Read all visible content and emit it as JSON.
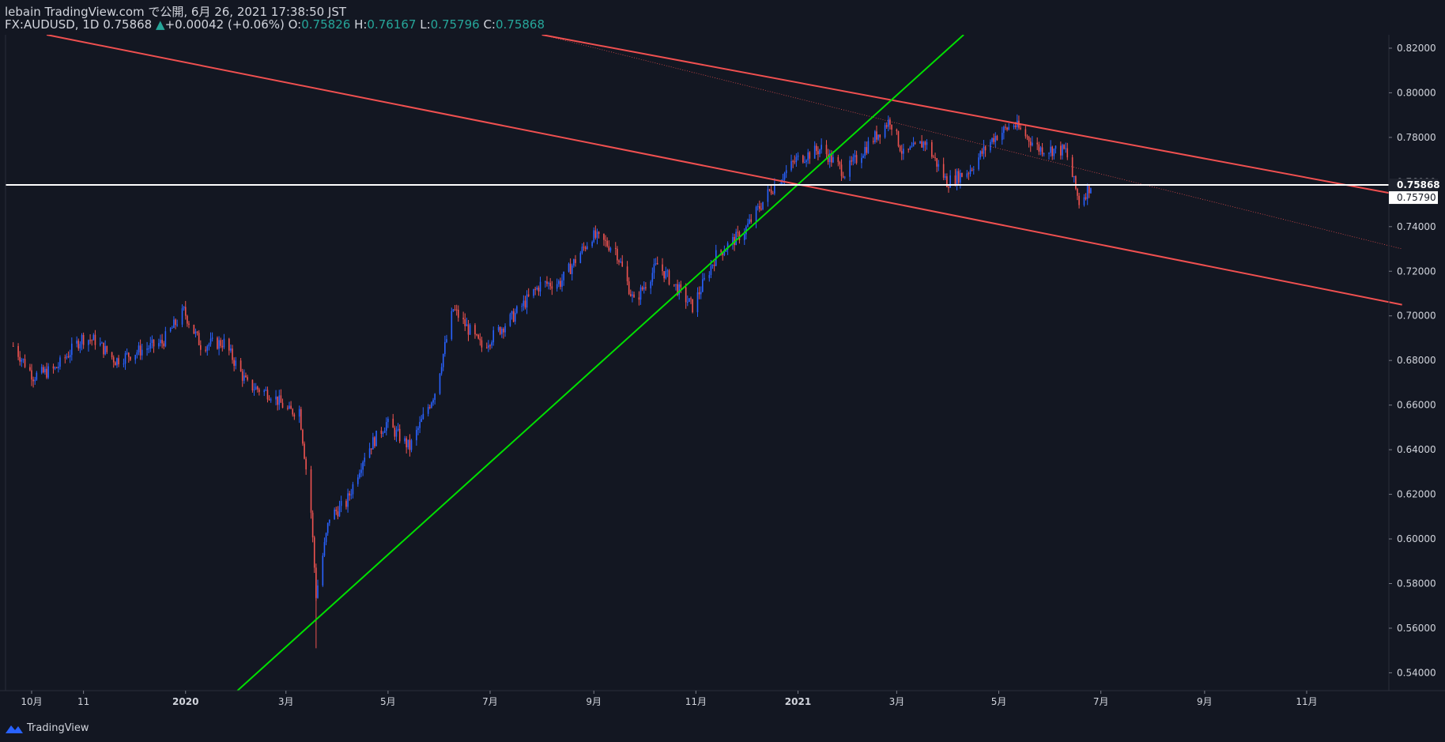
{
  "header": {
    "line1": "lebain TradingView.com で公開, 6月 26, 2021 17:38:50 JST",
    "symbol": "FX:AUDUSD, 1D 0.75868",
    "change_arrow": "▲",
    "change": "+0.00042 (+0.06%)",
    "o_label": "O:",
    "o_value": "0.75826",
    "h_label": "H:",
    "h_value": "0.76167",
    "l_label": "L:",
    "l_value": "0.75796",
    "c_label": "C:",
    "c_value": "0.75868"
  },
  "footer": {
    "brand": "TradingView"
  },
  "colors": {
    "background": "#131722",
    "up": "#2962ff",
    "down": "#ef5350",
    "upline": "#00e000",
    "channel": "#f05050",
    "hline": "#ffffff",
    "text": "#d1d4dc",
    "accent": "#26a69a"
  },
  "chart_data": {
    "type": "candlestick",
    "symbol": "FX:AUDUSD",
    "timeframe": "1D",
    "x_tick_labels": [
      "10月",
      "11",
      "2020",
      "3月",
      "5月",
      "7月",
      "9月",
      "11月",
      "2021",
      "3月",
      "5月",
      "7月",
      "9月",
      "11月"
    ],
    "y_ticks": [
      "0.82000",
      "0.80000",
      "0.78000",
      "0.76000",
      "0.74000",
      "0.72000",
      "0.70000",
      "0.68000",
      "0.66000",
      "0.64000",
      "0.62000",
      "0.60000",
      "0.58000",
      "0.56000",
      "0.54000"
    ],
    "ylim": [
      0.532,
      0.826
    ],
    "last_price_label": "0.75868",
    "prev_price_label": "0.75790",
    "horizontal_line": 0.75868,
    "price_path": [
      [
        "2019-09-20",
        0.6865
      ],
      [
        "2019-10-02",
        0.673
      ],
      [
        "2019-10-15",
        0.676
      ],
      [
        "2019-10-31",
        0.69
      ],
      [
        "2019-11-08",
        0.689
      ],
      [
        "2019-11-20",
        0.68
      ],
      [
        "2019-12-03",
        0.684
      ],
      [
        "2019-12-18",
        0.688
      ],
      [
        "2019-12-31",
        0.702
      ],
      [
        "2020-01-10",
        0.687
      ],
      [
        "2020-01-24",
        0.688
      ],
      [
        "2020-02-07",
        0.669
      ],
      [
        "2020-02-21",
        0.665
      ],
      [
        "2020-03-03",
        0.657
      ],
      [
        "2020-03-09",
        0.658
      ],
      [
        "2020-03-16",
        0.612
      ],
      [
        "2020-03-19",
        0.575
      ],
      [
        "2020-03-27",
        0.61
      ],
      [
        "2020-04-06",
        0.616
      ],
      [
        "2020-04-17",
        0.638
      ],
      [
        "2020-04-30",
        0.652
      ],
      [
        "2020-05-14",
        0.641
      ],
      [
        "2020-05-29",
        0.666
      ],
      [
        "2020-06-09",
        0.703
      ],
      [
        "2020-06-26",
        0.686
      ],
      [
        "2020-07-15",
        0.7
      ],
      [
        "2020-07-31",
        0.714
      ],
      [
        "2020-08-12",
        0.715
      ],
      [
        "2020-08-31",
        0.736
      ],
      [
        "2020-09-14",
        0.73
      ],
      [
        "2020-09-25",
        0.706
      ],
      [
        "2020-10-09",
        0.723
      ],
      [
        "2020-10-30",
        0.704
      ],
      [
        "2020-11-13",
        0.727
      ],
      [
        "2020-11-30",
        0.738
      ],
      [
        "2020-12-15",
        0.756
      ],
      [
        "2020-12-31",
        0.77
      ],
      [
        "2021-01-15",
        0.775
      ],
      [
        "2021-01-29",
        0.764
      ],
      [
        "2021-02-10",
        0.775
      ],
      [
        "2021-02-25",
        0.788
      ],
      [
        "2021-03-05",
        0.772
      ],
      [
        "2021-03-18",
        0.778
      ],
      [
        "2021-03-31",
        0.76
      ],
      [
        "2021-04-13",
        0.765
      ],
      [
        "2021-04-28",
        0.78
      ],
      [
        "2021-05-10",
        0.786
      ],
      [
        "2021-05-25",
        0.775
      ],
      [
        "2021-06-10",
        0.774
      ],
      [
        "2021-06-18",
        0.751
      ],
      [
        "2021-06-25",
        0.7587
      ]
    ],
    "upward_line": [
      [
        "2020-02-01",
        0.532
      ],
      [
        "2021-04-10",
        0.826
      ]
    ],
    "channel_upper": [
      [
        "2020-08-01",
        0.826
      ],
      [
        "2021-12-28",
        0.754
      ]
    ],
    "channel_lower": [
      [
        "2019-10-10",
        0.826
      ],
      [
        "2021-12-28",
        0.705
      ]
    ],
    "channel_mid": [
      [
        "2020-08-01",
        0.826
      ],
      [
        "2021-12-28",
        0.73
      ]
    ]
  }
}
